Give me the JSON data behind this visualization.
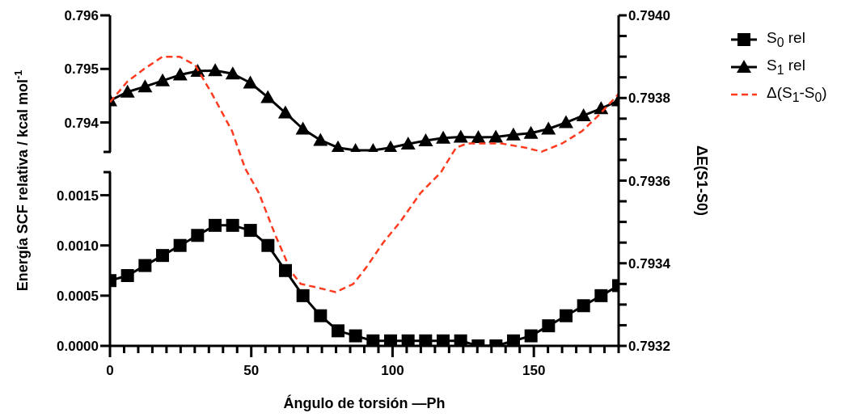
{
  "chart_data": [
    {
      "type": "line",
      "legend": "right",
      "marker": "triangle",
      "tick_labels": "y",
      "categories": [
        null,
        null,
        null,
        null,
        null,
        null,
        null,
        null,
        null,
        null,
        null,
        null,
        null,
        null,
        null,
        null,
        null,
        null,
        null,
        null,
        null,
        null,
        null,
        null,
        null,
        null,
        null,
        null,
        null,
        null
      ],
      "ylim": [
        0.79345,
        0.796
      ],
      "yticks": [
        0.794,
        0.795,
        0.796
      ],
      "series": [
        {
          "name": "S$_{1}$ rel",
          "color": "#000000",
          "values": [
            0.79441,
            0.79457,
            0.79467,
            0.79478,
            0.79489,
            0.79496,
            0.79497,
            0.79491,
            0.79474,
            0.79447,
            0.79418,
            0.79388,
            0.79367,
            0.79353,
            0.79348,
            0.79348,
            0.79353,
            0.7936,
            0.79366,
            0.79371,
            0.79373,
            0.79372,
            0.79373,
            0.79377,
            0.7938,
            0.79388,
            0.794,
            0.79413,
            0.79426,
            0.79441
          ]
        }
      ]
    },
    {
      "type": "line",
      "legend": "right",
      "xlabel": "Ángulo de torsión —Ph",
      "ylabel": "Energía SCF relativa / kcal mol$^{-1}$",
      "y2label": "ΔE(S1-S0)",
      "xlim": [
        0,
        180
      ],
      "xticks": [
        0,
        {
          "value": 5,
          "label": null
        },
        {
          "value": 10,
          "label": null
        },
        {
          "value": 15,
          "label": null
        },
        {
          "value": 20,
          "label": null
        },
        {
          "value": 25,
          "label": null
        },
        {
          "value": 30,
          "label": null
        },
        {
          "value": 35,
          "label": null
        },
        {
          "value": 40,
          "label": null
        },
        {
          "value": 45,
          "label": null
        },
        50,
        {
          "value": 55,
          "label": null
        },
        {
          "value": 60,
          "label": null
        },
        {
          "value": 65,
          "label": null
        },
        {
          "value": 70,
          "label": null
        },
        {
          "value": 75,
          "label": null
        },
        {
          "value": 80,
          "label": null
        },
        {
          "value": 85,
          "label": null
        },
        {
          "value": 90,
          "label": null
        },
        {
          "value": 95,
          "label": null
        },
        100,
        {
          "value": 105,
          "label": null
        },
        {
          "value": 110,
          "label": null
        },
        {
          "value": 115,
          "label": null
        },
        {
          "value": 120,
          "label": null
        },
        {
          "value": 125,
          "label": null
        },
        {
          "value": 130,
          "label": null
        },
        {
          "value": 135,
          "label": null
        },
        {
          "value": 140,
          "label": null
        },
        {
          "value": 145,
          "label": null
        },
        150,
        {
          "value": 155,
          "label": null
        },
        {
          "value": 160,
          "label": null
        },
        {
          "value": 165,
          "label": null
        },
        {
          "value": 170,
          "label": null
        },
        {
          "value": 175,
          "label": null
        },
        {
          "value": 180,
          "label": null
        }
      ],
      "ylim": [
        0,
        0.00173
      ],
      "yticks": [
        {
          "value": 0,
          "label": "0.0000"
        },
        {
          "value": 0.0005,
          "label": "0.0005"
        },
        {
          "value": 0.001,
          "label": "0.0010"
        },
        {
          "value": 0.0015,
          "label": "0.0015"
        }
      ],
      "y2lim": [
        0.7932,
        0.794
      ],
      "y2ticks": [
        {
          "value": 0.7932,
          "label": "0.7932"
        },
        {
          "value": 0.79325,
          "label": null
        },
        {
          "value": 0.7933,
          "label": null
        },
        {
          "value": 0.79335,
          "label": null
        },
        {
          "value": 0.7934,
          "label": "0.7934"
        },
        {
          "value": 0.79345,
          "label": null
        },
        {
          "value": 0.7935,
          "label": null
        },
        {
          "value": 0.79355,
          "label": null
        },
        {
          "value": 0.7936,
          "label": "0.7936"
        },
        {
          "value": 0.79365,
          "label": null
        },
        {
          "value": 0.7937,
          "label": null
        },
        {
          "value": 0.79375,
          "label": null
        },
        {
          "value": 0.7938,
          "label": "0.7938"
        },
        {
          "value": 0.79385,
          "label": null
        },
        {
          "value": 0.7939,
          "label": null
        },
        {
          "value": 0.79395,
          "label": null
        },
        {
          "value": 0.794,
          "label": "0.7940"
        }
      ],
      "series": [
        {
          "name": "S$_{0}$ rel",
          "color": "#000000",
          "marker": "square",
          "x": [
            0,
            6.2,
            12.4,
            18.6,
            24.8,
            31.0,
            37.2,
            43.4,
            49.7,
            55.9,
            62.1,
            68.3,
            74.5,
            80.7,
            86.9,
            93.1,
            99.3,
            105.5,
            111.7,
            117.9,
            124.1,
            130.3,
            136.6,
            142.8,
            149.0,
            155.2,
            161.4,
            167.6,
            173.8,
            180
          ],
          "values": [
            0.00065,
            0.0007,
            0.0008,
            0.0009,
            0.001,
            0.0011,
            0.0012,
            0.0012,
            0.00115,
            0.001,
            0.00075,
            0.0005,
            0.0003,
            0.00015,
            0.0001,
            5e-05,
            5e-05,
            5e-05,
            5e-05,
            5e-05,
            5e-05,
            0.0,
            0.0,
            5e-05,
            0.0001,
            0.0002,
            0.0003,
            0.0004,
            0.0005,
            0.0006
          ]
        },
        {
          "name": "Δ(S$_{1}$-S$_{0}$)",
          "color": "#ff3b1f",
          "axis": "y2",
          "line_style": "dashed",
          "marker": "none",
          "x": [
            0,
            6.2,
            12.0,
            18.6,
            24.6,
            30.1,
            36.1,
            43.2,
            47.8,
            52.7,
            58.4,
            64.1,
            67.5,
            74.1,
            79.9,
            86.1,
            90.7,
            96.7,
            102.7,
            109.9,
            117.1,
            122.5,
            126.5,
            138.5,
            146.8,
            152.8,
            160.0,
            167.1,
            173.2,
            180
          ],
          "values": [
            0.79379,
            0.79384,
            0.79387,
            0.7939,
            0.7939,
            0.79388,
            0.79381,
            0.79372,
            0.79363,
            0.79357,
            0.79347,
            0.79338,
            0.79335,
            0.79334,
            0.79333,
            0.79335,
            0.79339,
            0.79345,
            0.7935,
            0.79357,
            0.79362,
            0.79368,
            0.79369,
            0.79369,
            0.79368,
            0.79367,
            0.79369,
            0.79372,
            0.79376,
            0.79381
          ]
        }
      ]
    }
  ]
}
